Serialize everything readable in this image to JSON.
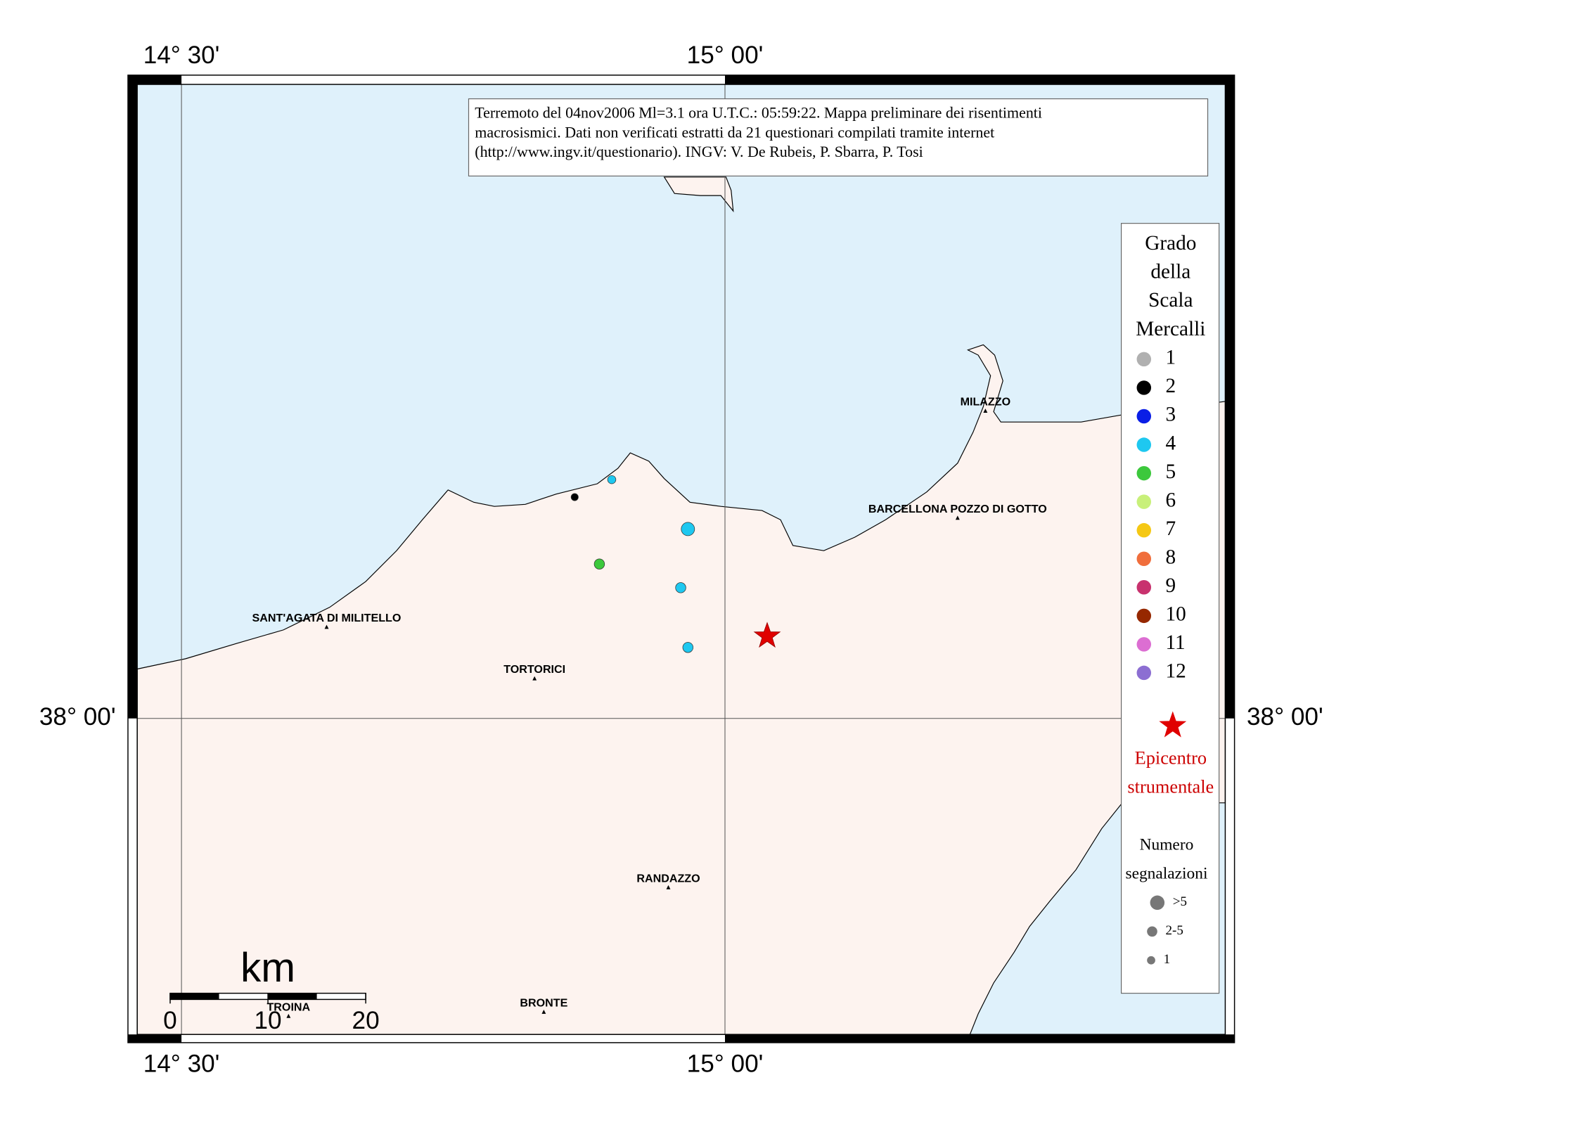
{
  "title_box": {
    "lines": [
      "Terremoto del 04nov2006 Ml=3.1 ora U.T.C.: 05:59:22.  Mappa preliminare dei risentimenti",
      "macrosismici.  Dati non verificati estratti da 21 questionari compilati tramite internet",
      "(http://www.ingv.it/questionario).  INGV: V.  De Rubeis, P.  Sbarra, P.  Tosi"
    ]
  },
  "graticule": {
    "lon_west": "14° 30'",
    "lon_east": "15° 00'",
    "lat": "38° 00'"
  },
  "cities": [
    "MILAZZO",
    "BARCELLONA POZZO DI GOTTO",
    "SANT'AGATA DI MILITELLO",
    "TORTORICI",
    "RANDAZZO",
    "BRONTE",
    "TROINA"
  ],
  "scale_bar": {
    "unit": "km",
    "ticks": [
      0,
      10,
      20
    ]
  },
  "legend": {
    "title": [
      "Grado",
      "della",
      "Scala",
      "Mercalli"
    ],
    "intensities": [
      1,
      2,
      3,
      4,
      5,
      6,
      7,
      8,
      9,
      10,
      11,
      12
    ],
    "colors": [
      "#b0b0b0",
      "#000000",
      "#0a1ee6",
      "#1ec8f0",
      "#3cc83c",
      "#c8f07a",
      "#f5c814",
      "#f06e3c",
      "#c8326e",
      "#962800",
      "#dc6ed2",
      "#8c6ed2"
    ],
    "epicenter": [
      "Epicentro",
      "strumentale"
    ],
    "count_title": [
      "Numero",
      "segnalazioni"
    ],
    "count_classes": [
      ">5",
      "2-5",
      "1"
    ]
  },
  "points": [
    {
      "intensity": 2
    },
    {
      "intensity": 4
    },
    {
      "intensity": 4
    },
    {
      "intensity": 5
    },
    {
      "intensity": 4
    },
    {
      "intensity": 4
    }
  ]
}
